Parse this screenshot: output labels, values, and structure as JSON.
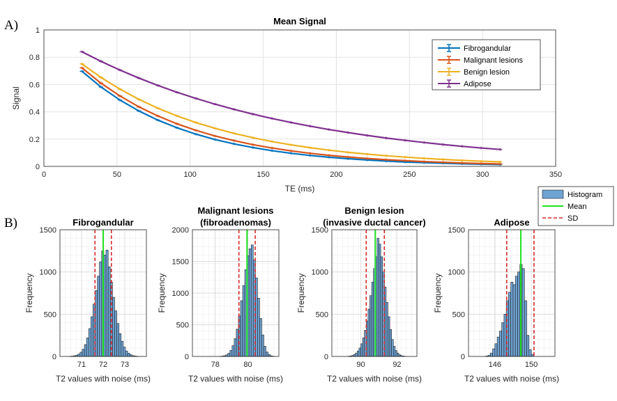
{
  "panel_labels": {
    "a": "A)",
    "b": "B)"
  },
  "chart_data": [
    {
      "type": "line",
      "title": "Mean Signal",
      "xlabel": "TE (ms)",
      "ylabel": "Signal",
      "xlim": [
        0,
        350
      ],
      "ylim": [
        0,
        1
      ],
      "xticks": [
        "0",
        "50",
        "100",
        "150",
        "200",
        "250",
        "300",
        "350"
      ],
      "yticks": [
        "0",
        "0.2",
        "0.4",
        "0.6",
        "0.8",
        "1"
      ],
      "grid": true,
      "legend_position": "top-right",
      "x": [
        26,
        39,
        52,
        65,
        78,
        91,
        104,
        117,
        130,
        143,
        156,
        169,
        182,
        195,
        208,
        221,
        234,
        247,
        260,
        273,
        286,
        299,
        312
      ],
      "series": [
        {
          "name": "Fibrogandular",
          "color": "#0072BD",
          "values": [
            0.697,
            0.582,
            0.486,
            0.406,
            0.339,
            0.283,
            0.236,
            0.197,
            0.165,
            0.138,
            0.115,
            0.096,
            0.08,
            0.067,
            0.056,
            0.047,
            0.039,
            0.032,
            0.027,
            0.023,
            0.019,
            0.016,
            0.013
          ]
        },
        {
          "name": "Malignant lesions",
          "color": "#D95319",
          "values": [
            0.722,
            0.61,
            0.516,
            0.436,
            0.369,
            0.312,
            0.264,
            0.223,
            0.189,
            0.159,
            0.135,
            0.114,
            0.096,
            0.081,
            0.069,
            0.058,
            0.049,
            0.042,
            0.035,
            0.03,
            0.025,
            0.021,
            0.018
          ]
        },
        {
          "name": "Benign lesion",
          "color": "#EDB120",
          "values": [
            0.751,
            0.652,
            0.566,
            0.491,
            0.426,
            0.37,
            0.321,
            0.279,
            0.242,
            0.21,
            0.182,
            0.158,
            0.137,
            0.119,
            0.103,
            0.09,
            0.078,
            0.068,
            0.059,
            0.051,
            0.044,
            0.038,
            0.033
          ]
        },
        {
          "name": "Adipose",
          "color": "#7E2F8E",
          "values": [
            0.84,
            0.77,
            0.706,
            0.647,
            0.593,
            0.543,
            0.498,
            0.456,
            0.418,
            0.383,
            0.351,
            0.322,
            0.295,
            0.27,
            0.248,
            0.227,
            0.208,
            0.191,
            0.175,
            0.16,
            0.147,
            0.135,
            0.124
          ]
        }
      ]
    },
    {
      "type": "histogram",
      "title": [
        "Fibrogandular"
      ],
      "xlabel": "T2 values with noise (ms)",
      "ylabel": "Frequency",
      "xlim": [
        70,
        74
      ],
      "ylim": [
        0,
        1500
      ],
      "xticks": [
        "71",
        "72",
        "73"
      ],
      "yticks": [
        "0",
        "500",
        "1000",
        "1500"
      ],
      "grid": true,
      "mean": 72.0,
      "sd_lines": [
        71.62,
        72.38
      ],
      "bin_start": 70.43,
      "bin_width": 0.1,
      "counts": [
        2,
        4,
        8,
        15,
        28,
        50,
        85,
        140,
        220,
        330,
        470,
        620,
        780,
        950,
        1120,
        1250,
        1200,
        1260,
        1060,
        880,
        700,
        540,
        390,
        270,
        180,
        110,
        65,
        38,
        20,
        10,
        5,
        2
      ]
    },
    {
      "type": "histogram",
      "title": [
        "Malignant lesions",
        "(fibroadenomas)"
      ],
      "xlabel": "T2 values with noise (ms)",
      "ylabel": "Frequency",
      "xlim": [
        76.6,
        81.9
      ],
      "ylim": [
        0,
        2000
      ],
      "xticks": [
        "78",
        "80"
      ],
      "yticks": [
        "0",
        "500",
        "1000",
        "1500",
        "2000"
      ],
      "grid": true,
      "mean": 79.95,
      "sd_lines": [
        79.45,
        80.45
      ],
      "bin_start": 78.25,
      "bin_width": 0.13,
      "counts": [
        2,
        5,
        12,
        25,
        50,
        95,
        170,
        280,
        430,
        640,
        880,
        1120,
        1370,
        1590,
        1700,
        1760,
        1520,
        1240,
        920,
        600,
        340,
        160,
        70,
        30,
        10,
        3
      ]
    },
    {
      "type": "histogram",
      "title": [
        "Benign lesion",
        "(invasive ductal cancer)"
      ],
      "xlabel": "T2 values with noise (ms)",
      "ylabel": "Frequency",
      "xlim": [
        88.4,
        93.1
      ],
      "ylim": [
        0,
        1500
      ],
      "xticks": [
        "90",
        "92"
      ],
      "yticks": [
        "0",
        "500",
        "1000",
        "1500"
      ],
      "grid": true,
      "mean": 90.8,
      "sd_lines": [
        90.3,
        91.3
      ],
      "bin_start": 89.3,
      "bin_width": 0.1,
      "counts": [
        3,
        6,
        12,
        22,
        40,
        65,
        100,
        150,
        220,
        310,
        420,
        560,
        720,
        880,
        1040,
        1180,
        1400,
        1330,
        1180,
        1000,
        820,
        640,
        470,
        320,
        200,
        120,
        70,
        40,
        20,
        10,
        4,
        2
      ]
    },
    {
      "type": "histogram",
      "title": [
        "Adipose"
      ],
      "xlabel": "T2 values with noise (ms)",
      "ylabel": "Frequency",
      "xlim": [
        143.1,
        152.6
      ],
      "ylim": [
        0,
        1500
      ],
      "xticks": [
        "146",
        "150"
      ],
      "yticks": [
        "0",
        "500",
        "1000",
        "1500"
      ],
      "grid": true,
      "mean": 148.85,
      "sd_lines": [
        147.3,
        150.3
      ],
      "bin_start": 145.0,
      "bin_width": 0.25,
      "counts": [
        5,
        15,
        40,
        90,
        150,
        230,
        300,
        400,
        500,
        660,
        760,
        880,
        850,
        950,
        1000,
        1090,
        1040,
        660,
        250,
        80,
        25
      ]
    }
  ],
  "hist_legend": {
    "items": [
      {
        "label": "Histogram",
        "kind": "bar",
        "color": "#6fa3d3"
      },
      {
        "label": "Mean",
        "kind": "line",
        "color": "#1fe21f"
      },
      {
        "label": "SD",
        "kind": "dashed",
        "color": "#d62728"
      }
    ]
  },
  "colors": {
    "bar_fill": "#6fa3d3",
    "bar_edge": "#1a1a1a",
    "mean_line": "#1fe21f",
    "sd_line": "#d62728",
    "grid": "#e3e3e3",
    "axis": "#262626"
  }
}
